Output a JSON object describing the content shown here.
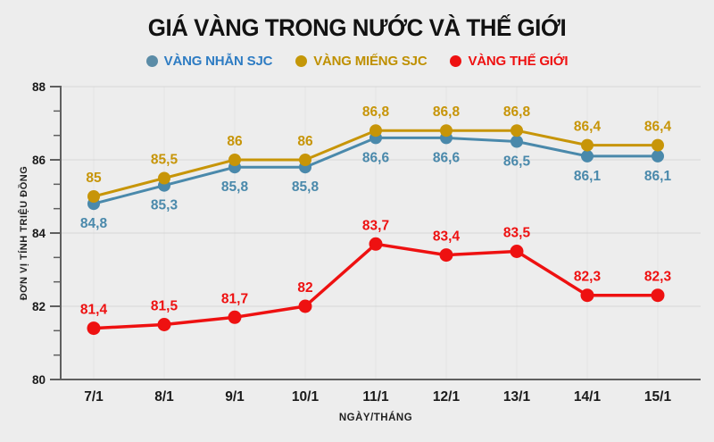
{
  "title": "GIÁ VÀNG TRONG NƯỚC VÀ THẾ GIỚI",
  "colors": {
    "background": "#ededed",
    "h_grid": "#d7d7d7",
    "v_grid": "#e2e2e2",
    "axis": "#5f5f5f",
    "tick_label": "#1a1a1a",
    "axis_title": "#222222"
  },
  "legend": {
    "items": [
      {
        "label": "VÀNG NHẪN SJC",
        "text_color": "#2e7cc3",
        "dot_color": "#5b8ca7"
      },
      {
        "label": "VÀNG MIẾNG SJC",
        "text_color": "#bf9000",
        "dot_color": "#c49708"
      },
      {
        "label": "VÀNG THẾ GIỚI",
        "text_color": "#ee1111",
        "dot_color": "#ee1111"
      }
    ]
  },
  "chart_data": {
    "type": "line",
    "title": "GIÁ VÀNG TRONG NƯỚC VÀ THẾ GIỚI",
    "x": [
      "7/1",
      "8/1",
      "9/1",
      "10/1",
      "11/1",
      "12/1",
      "13/1",
      "14/1",
      "15/1"
    ],
    "xlabel": "NGÀY/THÁNG",
    "ylabel": "ĐƠN VỊ TÍNH TRIỆU ĐỒNG",
    "ylim": [
      80,
      88
    ],
    "yticks": [
      80,
      82,
      84,
      86,
      88
    ],
    "minor_ticks_between_majors": 2,
    "grid": true,
    "legend_position": "top",
    "series": [
      {
        "name": "VÀNG NHẪN SJC",
        "color": "#4a89ab",
        "values": [
          84.8,
          85.3,
          85.8,
          85.8,
          86.6,
          86.6,
          86.5,
          86.1,
          86.1
        ],
        "labels": [
          "84,8",
          "85,3",
          "85,8",
          "85,8",
          "86,6",
          "86,6",
          "86,5",
          "86,1",
          "86,1"
        ],
        "label_position": "below"
      },
      {
        "name": "VÀNG MIẾNG SJC",
        "color": "#c79508",
        "values": [
          85,
          85.5,
          86,
          86,
          86.8,
          86.8,
          86.8,
          86.4,
          86.4
        ],
        "labels": [
          "85",
          "85,5",
          "86",
          "86",
          "86,8",
          "86,8",
          "86,8",
          "86,4",
          "86,4"
        ],
        "label_position": "above"
      },
      {
        "name": "VÀNG THẾ GIỚI",
        "color": "#ee1111",
        "values": [
          81.4,
          81.5,
          81.7,
          82,
          83.7,
          83.4,
          83.5,
          82.3,
          82.3
        ],
        "labels": [
          "81,4",
          "81,5",
          "81,7",
          "82",
          "83,7",
          "83,4",
          "83,5",
          "82,3",
          "82,3"
        ],
        "label_position": "above"
      }
    ]
  }
}
